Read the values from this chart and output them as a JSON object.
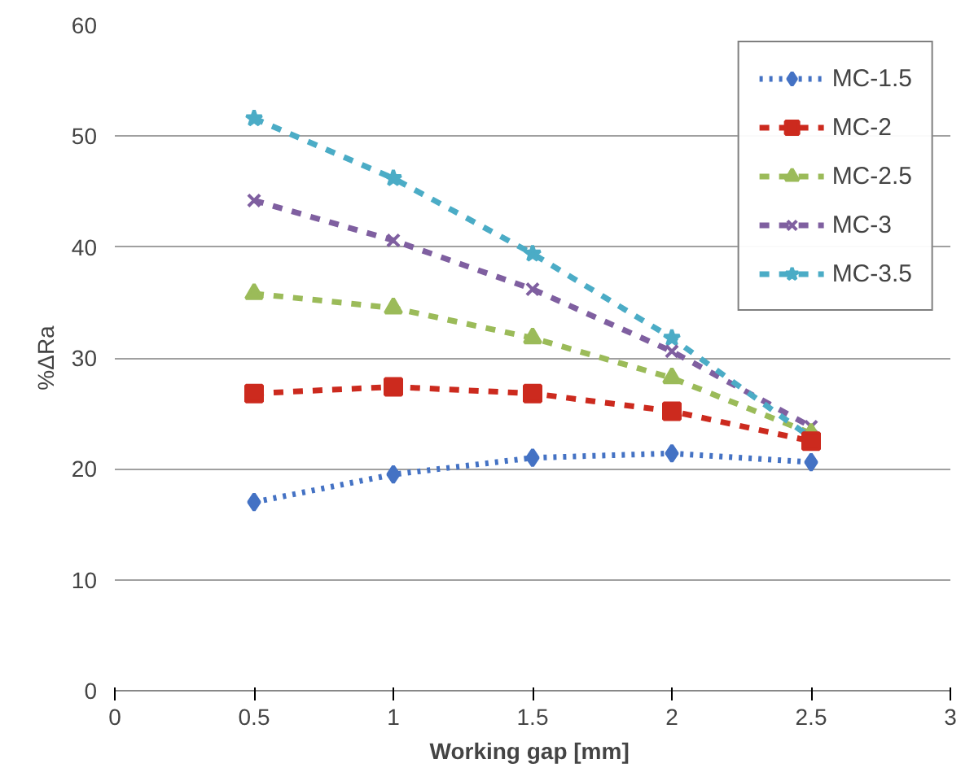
{
  "chart_data": {
    "type": "line",
    "xlabel": "Working gap  [mm]",
    "ylabel": "%ΔRa",
    "x": [
      0.5,
      1,
      1.5,
      2,
      2.5
    ],
    "xlim": [
      0,
      3
    ],
    "xticks": [
      0,
      0.5,
      1,
      1.5,
      2,
      2.5,
      3
    ],
    "ylim": [
      0,
      60
    ],
    "yticks": [
      0,
      10,
      20,
      30,
      40,
      50,
      60
    ],
    "grid": "y",
    "legend": "top right",
    "series": [
      {
        "name": "MC-1.5",
        "color": "#4472c4",
        "marker": "diamond",
        "line_style": "dotted",
        "values": [
          17,
          19.5,
          21,
          21.4,
          20.6
        ]
      },
      {
        "name": "MC-2",
        "color": "#cc2a1e",
        "marker": "square",
        "line_style": "dashed",
        "values": [
          26.8,
          27.4,
          26.8,
          25.2,
          22.5
        ]
      },
      {
        "name": "MC-2.5",
        "color": "#9bbb59",
        "marker": "triangle",
        "line_style": "dashed",
        "values": [
          35.8,
          34.5,
          31.8,
          28.2,
          23.2
        ]
      },
      {
        "name": "MC-3",
        "color": "#7f5fa0",
        "marker": "cross",
        "line_style": "dashed",
        "values": [
          44.2,
          40.6,
          36.2,
          30.6,
          23.8
        ]
      },
      {
        "name": "MC-3.5",
        "color": "#4bacc6",
        "marker": "star",
        "line_style": "dashed",
        "values": [
          51.6,
          46.2,
          39.4,
          31.8,
          22.8
        ]
      }
    ]
  }
}
